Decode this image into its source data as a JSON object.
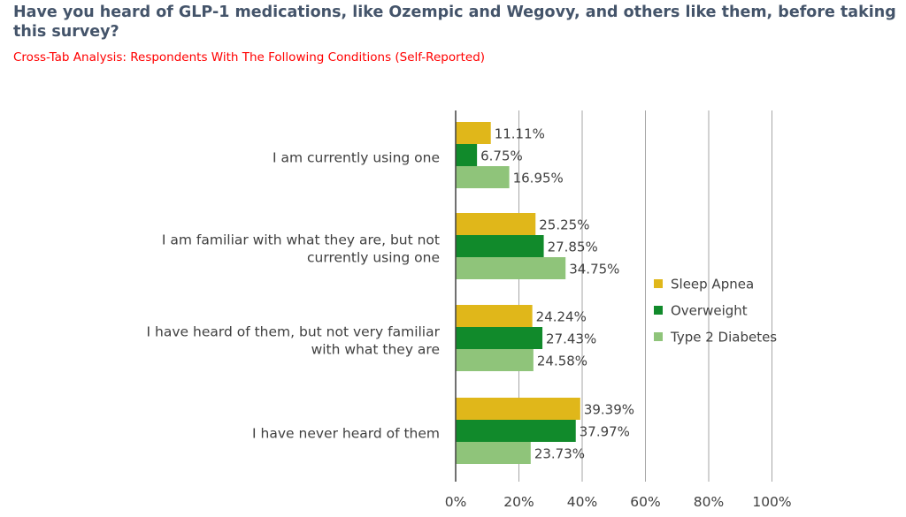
{
  "title": "Have you heard of GLP-1 medications, like Ozempic and Wegovy, and others like them, before taking this survey?",
  "subtitle": "Cross-Tab Analysis: Respondents With The Following Conditions (Self-Reported)",
  "colors": {
    "Sleep Apnea": "#e0b71a",
    "Overweight": "#118a2b",
    "Type 2 Diabetes": "#8fc47a",
    "gridline": "#a6a6a6",
    "axis": "#404040"
  },
  "chart_data": {
    "type": "bar",
    "orientation": "horizontal",
    "categories": [
      [
        "I am currently using one"
      ],
      [
        "I am familiar with what they are, but not",
        "currently using one"
      ],
      [
        "I have heard of them, but not very familiar",
        "with what they are"
      ],
      [
        "I have never heard of them"
      ]
    ],
    "series": [
      {
        "name": "Sleep Apnea",
        "values": [
          11.11,
          25.25,
          24.24,
          39.39
        ],
        "labels": [
          "11.11%",
          "25.25%",
          "24.24%",
          "39.39%"
        ]
      },
      {
        "name": "Overweight",
        "values": [
          6.75,
          27.85,
          27.43,
          37.97
        ],
        "labels": [
          "6.75%",
          "27.85%",
          "27.43%",
          "37.97%"
        ]
      },
      {
        "name": "Type 2 Diabetes",
        "values": [
          16.95,
          34.75,
          24.58,
          23.73
        ],
        "labels": [
          "16.95%",
          "34.75%",
          "24.58%",
          "23.73%"
        ]
      }
    ],
    "xlim": [
      0,
      100
    ],
    "xticks": [
      0,
      20,
      40,
      60,
      80,
      100
    ],
    "xtick_labels": [
      "0%",
      "20%",
      "40%",
      "60%",
      "80%",
      "100%"
    ],
    "grid": true,
    "legend_position": "right"
  }
}
